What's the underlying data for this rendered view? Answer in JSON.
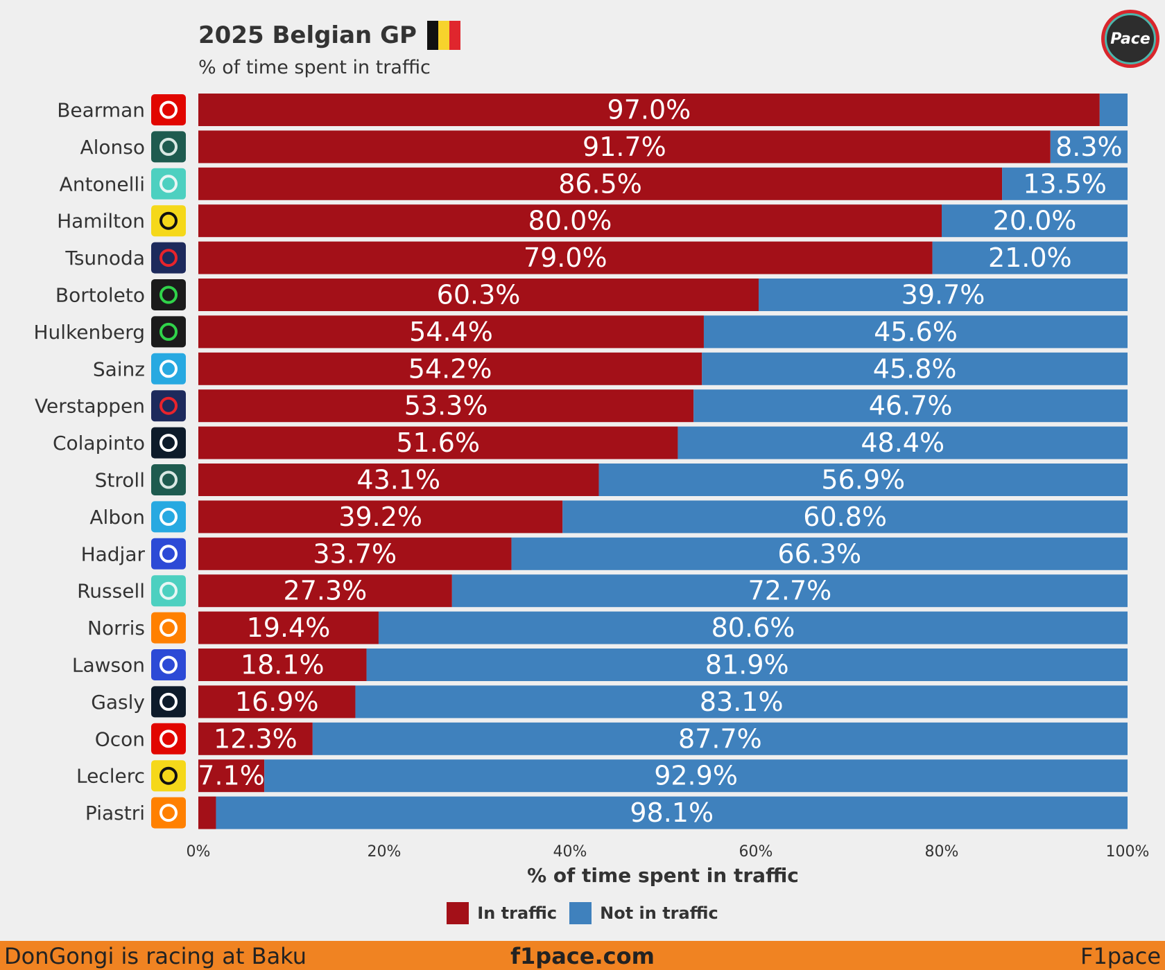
{
  "header": {
    "title": "2025 Belgian GP",
    "subtitle": "% of time spent in traffic",
    "logo_text": "Pace"
  },
  "colors": {
    "in_traffic": "#a31018",
    "not_in_traffic": "#3f81bd",
    "flag": [
      "#111111",
      "#f7d32c",
      "#e0262d"
    ]
  },
  "chart_data": {
    "type": "bar",
    "orientation": "horizontal",
    "stacked": true,
    "title": "2025 Belgian GP",
    "subtitle": "% of time spent in traffic",
    "xlabel": "% of time spent in traffic",
    "ylabel": "",
    "xlim": [
      0,
      100
    ],
    "xticks": [
      "0%",
      "20%",
      "40%",
      "60%",
      "80%",
      "100%"
    ],
    "categories": [
      "Bearman",
      "Alonso",
      "Antonelli",
      "Hamilton",
      "Tsunoda",
      "Bortoleto",
      "Hulkenberg",
      "Sainz",
      "Verstappen",
      "Colapinto",
      "Stroll",
      "Albon",
      "Hadjar",
      "Russell",
      "Norris",
      "Lawson",
      "Gasly",
      "Ocon",
      "Leclerc",
      "Piastri"
    ],
    "teams": [
      "haas-icon",
      "aston-martin-icon",
      "mercedes-icon",
      "ferrari-icon",
      "red-bull-icon",
      "sauber-icon",
      "sauber-icon",
      "williams-icon",
      "red-bull-icon",
      "alpine-icon",
      "aston-martin-icon",
      "williams-icon",
      "racing-bulls-icon",
      "mercedes-icon",
      "mclaren-icon",
      "racing-bulls-icon",
      "alpine-icon",
      "haas-icon",
      "ferrari-icon",
      "mclaren-icon"
    ],
    "series": [
      {
        "name": "In traffic",
        "color": "#a31018",
        "values": [
          97.0,
          91.7,
          86.5,
          80.0,
          79.0,
          60.3,
          54.4,
          54.2,
          53.3,
          51.6,
          43.1,
          39.2,
          33.7,
          27.3,
          19.4,
          18.1,
          16.9,
          12.3,
          7.1,
          1.9
        ],
        "labels": [
          "97.0%",
          "91.7%",
          "86.5%",
          "80.0%",
          "79.0%",
          "60.3%",
          "54.4%",
          "54.2%",
          "53.3%",
          "51.6%",
          "43.1%",
          "39.2%",
          "33.7%",
          "27.3%",
          "19.4%",
          "18.1%",
          "16.9%",
          "12.3%",
          "7.1%",
          ""
        ]
      },
      {
        "name": "Not in traffic",
        "color": "#3f81bd",
        "values": [
          3.0,
          8.3,
          13.5,
          20.0,
          21.0,
          39.7,
          45.6,
          45.8,
          46.7,
          48.4,
          56.9,
          60.8,
          66.3,
          72.7,
          80.6,
          81.9,
          83.1,
          87.7,
          92.9,
          98.1
        ],
        "labels": [
          "",
          "8.3%",
          "13.5%",
          "20.0%",
          "21.0%",
          "39.7%",
          "45.6%",
          "45.8%",
          "46.7%",
          "48.4%",
          "56.9%",
          "60.8%",
          "66.3%",
          "72.7%",
          "80.6%",
          "81.9%",
          "83.1%",
          "87.7%",
          "92.9%",
          "98.1%"
        ]
      }
    ],
    "legend": {
      "position": "bottom",
      "entries": [
        "In traffic",
        "Not in traffic"
      ]
    }
  },
  "footer": {
    "left": "DonGongi is racing at Baku",
    "center": "f1pace.com",
    "right": "F1pace"
  }
}
